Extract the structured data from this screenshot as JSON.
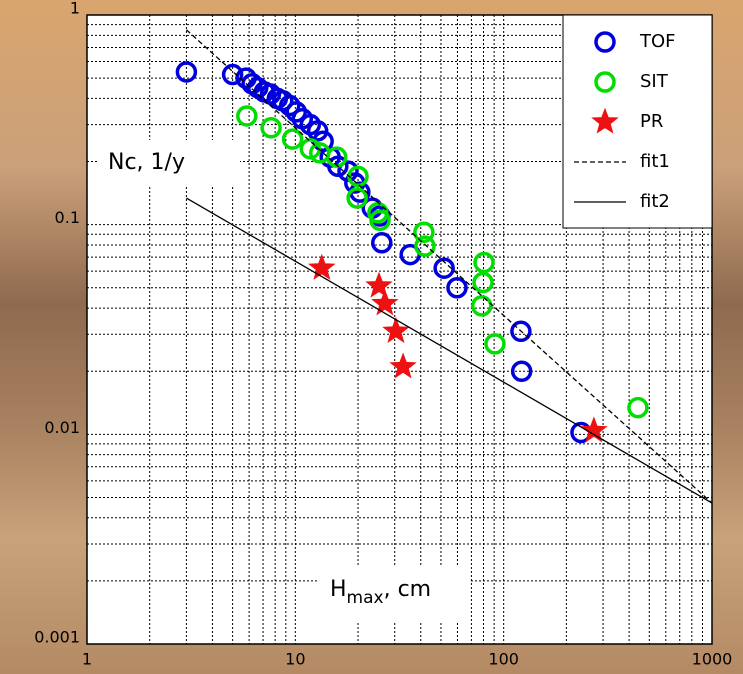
{
  "chart_data": {
    "type": "scatter",
    "xlabel": {
      "main": "H",
      "sub": "max",
      "rest": ", cm"
    },
    "ylabel": "Nc, 1/y",
    "log_x": true,
    "log_y": true,
    "grid": true,
    "minor_grid": true,
    "legend": "upper right",
    "xlim": [
      1,
      1000
    ],
    "ylim": [
      0.001,
      1
    ],
    "xticks": [
      1,
      10,
      100,
      1000
    ],
    "yticks": [
      0.001,
      0.01,
      0.1,
      1
    ],
    "series": [
      {
        "name": "TOF",
        "color": "#0000dd",
        "marker": "circle",
        "x": [
          3,
          5,
          5.8,
          6.2,
          6.6,
          7.1,
          7.6,
          8.2,
          8.7,
          9.4,
          10.1,
          10.8,
          11.8,
          12.8,
          13.6,
          14.7,
          16,
          17.9,
          19.3,
          20.4,
          23.4,
          25.5,
          26,
          35.6,
          51.8,
          59.7,
          121,
          122,
          235
        ],
        "values": [
          0.535,
          0.52,
          0.5,
          0.47,
          0.45,
          0.43,
          0.42,
          0.4,
          0.39,
          0.37,
          0.345,
          0.32,
          0.3,
          0.28,
          0.25,
          0.21,
          0.19,
          0.18,
          0.158,
          0.143,
          0.12,
          0.11,
          0.082,
          0.072,
          0.062,
          0.05,
          0.031,
          0.02,
          0.0102
        ]
      },
      {
        "name": "SIT",
        "color": "#00dd00",
        "marker": "circle",
        "x": [
          5.85,
          7.65,
          9.7,
          11.8,
          13.1,
          15.8,
          20,
          19.8,
          24.9,
          25.5,
          41.4,
          41.9,
          80.5,
          79.6,
          78.5,
          90.8,
          441
        ],
        "values": [
          0.33,
          0.29,
          0.256,
          0.23,
          0.22,
          0.21,
          0.17,
          0.134,
          0.114,
          0.105,
          0.092,
          0.079,
          0.066,
          0.053,
          0.041,
          0.027,
          0.0134
        ]
      },
      {
        "name": "PR",
        "color": "#ee1111",
        "marker": "star",
        "x": [
          13.4,
          25.2,
          26.9,
          30.4,
          32.9,
          271
        ],
        "values": [
          0.062,
          0.051,
          0.042,
          0.031,
          0.021,
          0.0104
        ]
      },
      {
        "name": "fit1",
        "color": "#000000",
        "marker": "line",
        "linestyle": "dashed",
        "x": [
          3,
          1000
        ],
        "values": [
          0.85,
          0.0047
        ]
      },
      {
        "name": "fit2",
        "color": "#000000",
        "marker": "line",
        "linestyle": "solid",
        "x": [
          3,
          1000
        ],
        "values": [
          0.134,
          0.0047
        ]
      }
    ]
  }
}
